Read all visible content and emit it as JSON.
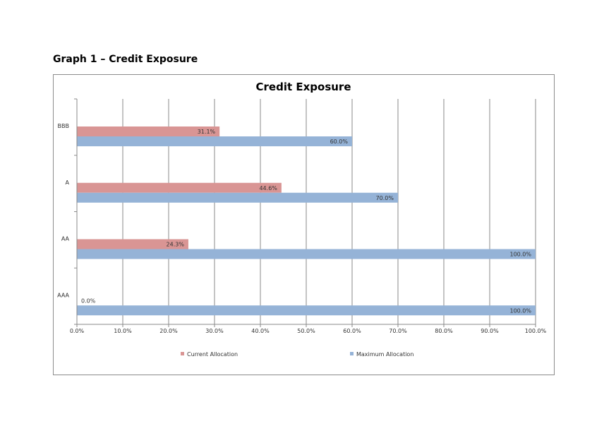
{
  "document": {
    "heading": "Graph 1 – Credit Exposure"
  },
  "chart_data": {
    "type": "bar",
    "orientation": "horizontal",
    "title": "Credit Exposure",
    "xlabel": "",
    "ylabel": "",
    "categories": [
      "BBB",
      "A",
      "AA",
      "AAA"
    ],
    "series": [
      {
        "name": "Current Allocation",
        "values": [
          31.1,
          44.6,
          24.3,
          0.0
        ],
        "color": "#d99594"
      },
      {
        "name": "Maximum Allocation",
        "values": [
          60.0,
          70.0,
          100.0,
          100.0
        ],
        "color": "#95b3d7"
      }
    ],
    "xlim": [
      0,
      100
    ],
    "xticks": [
      "0.0%",
      "10.0%",
      "20.0%",
      "30.0%",
      "40.0%",
      "50.0%",
      "60.0%",
      "70.0%",
      "80.0%",
      "90.0%",
      "100.0%"
    ],
    "data_labels": [
      [
        "31.1%",
        "44.6%",
        "24.3%",
        "0.0%"
      ],
      [
        "60.0%",
        "70.0%",
        "100.0%",
        "100.0%"
      ]
    ],
    "grid": "vertical",
    "legend_position": "bottom"
  }
}
